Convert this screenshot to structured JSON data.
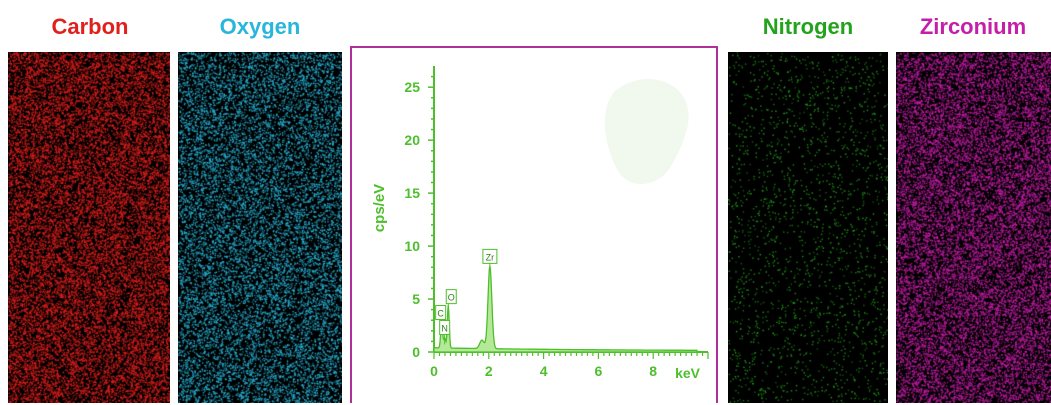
{
  "panels": {
    "carbon": {
      "label": "Carbon",
      "color": "#e0201d"
    },
    "oxygen": {
      "label": "Oxygen",
      "color": "#29b6da"
    },
    "nitrogen": {
      "label": "Nitrogen",
      "color": "#23a21c"
    },
    "zirconium": {
      "label": "Zirconium",
      "color": "#c51ea8"
    }
  },
  "chart_data": {
    "type": "line",
    "ylabel": "cps/eV",
    "xlabel": "keV",
    "xlim": [
      0,
      10
    ],
    "ylim": [
      0,
      27
    ],
    "x_ticks": [
      "0",
      "2",
      "4",
      "6",
      "8"
    ],
    "y_ticks": [
      "0",
      "5",
      "10",
      "15",
      "20",
      "25"
    ],
    "color": "#4dbf2a",
    "peaks": [
      {
        "label": "C",
        "x": 0.28,
        "y": 2.5
      },
      {
        "label": "N",
        "x": 0.39,
        "y": 0.9
      },
      {
        "label": "O",
        "x": 0.52,
        "y": 4.0
      },
      {
        "label": "Zr",
        "x": 2.04,
        "y": 7.8
      }
    ],
    "baseline": 0.3
  }
}
